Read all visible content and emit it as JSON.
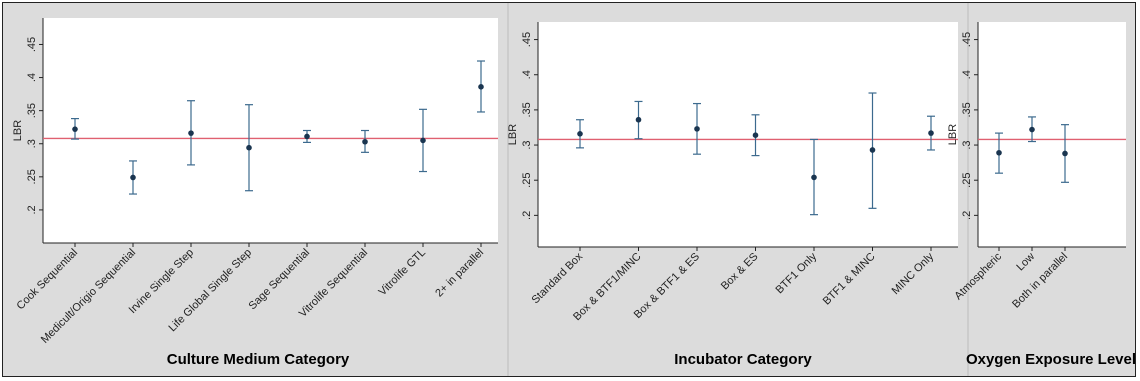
{
  "chart_data": [
    {
      "type": "scatter",
      "ylabel": "LBR",
      "xlabel": "Culture Medium Category",
      "yticks": [
        ".2",
        ".25",
        ".3",
        ".35",
        ".4",
        ".45"
      ],
      "ylim": [
        0.15,
        0.49
      ],
      "reference_line": 0.308,
      "categories": [
        "Cook Sequential",
        "Medicult/Origio Sequential",
        "Irvine Single Step",
        "Life Global Single Step",
        "Sage Sequential",
        "Vitrolife Sequential",
        "Vitrolife GTL",
        "2+ in parallel"
      ],
      "values": [
        0.322,
        0.249,
        0.316,
        0.294,
        0.311,
        0.303,
        0.305,
        0.386
      ],
      "lower": [
        0.307,
        0.224,
        0.268,
        0.229,
        0.302,
        0.287,
        0.258,
        0.348
      ],
      "upper": [
        0.338,
        0.274,
        0.365,
        0.359,
        0.32,
        0.32,
        0.352,
        0.425
      ]
    },
    {
      "type": "scatter",
      "ylabel": "LBR",
      "xlabel": "Incubator Category",
      "yticks": [
        ".2",
        ".25",
        ".3",
        ".35",
        ".4",
        ".45"
      ],
      "ylim": [
        0.155,
        0.475
      ],
      "reference_line": 0.308,
      "categories": [
        "Standard Box",
        "Box & BTF1/MINC",
        "Box & BTF1 & ES",
        "Box & ES",
        "BTF1 Only",
        "BTF1 & MINC",
        "MINC Only"
      ],
      "values": [
        0.316,
        0.336,
        0.323,
        0.314,
        0.254,
        0.293,
        0.317
      ],
      "lower": [
        0.296,
        0.309,
        0.287,
        0.285,
        0.201,
        0.21,
        0.293
      ],
      "upper": [
        0.336,
        0.362,
        0.359,
        0.343,
        0.308,
        0.374,
        0.341
      ]
    },
    {
      "type": "scatter",
      "ylabel": "LBR",
      "xlabel": "Oxygen Exposure Level",
      "yticks": [
        ".2",
        ".25",
        ".3",
        ".35",
        ".4",
        ".45"
      ],
      "ylim": [
        0.155,
        0.475
      ],
      "reference_line": 0.308,
      "categories": [
        "Atmospheric",
        "Low",
        "Both in parallel"
      ],
      "values": [
        0.289,
        0.322,
        0.288
      ],
      "lower": [
        0.26,
        0.305,
        0.247
      ],
      "upper": [
        0.317,
        0.34,
        0.329
      ]
    }
  ]
}
